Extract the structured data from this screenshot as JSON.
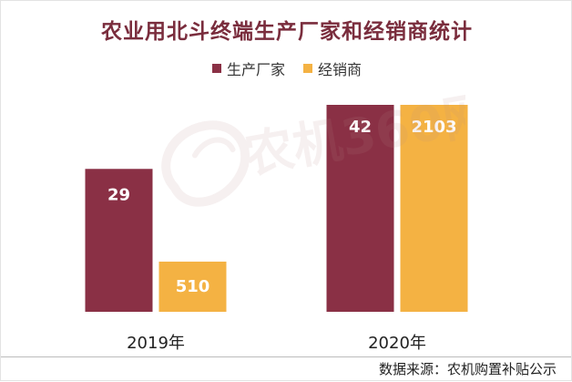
{
  "chart_data": {
    "type": "bar",
    "title": "农业用北斗终端生产厂家和经销商统计",
    "categories": [
      "2019年",
      "2020年"
    ],
    "series": [
      {
        "name": "生产厂家",
        "values": [
          29,
          42
        ],
        "color": "#8a3045"
      },
      {
        "name": "经销商",
        "values": [
          510,
          2103
        ],
        "color": "#f4b243"
      }
    ],
    "legend_position": "top-center",
    "grid": false
  },
  "watermark": {
    "text": "农机360网"
  },
  "source": "数据来源：农机购置补贴公示"
}
